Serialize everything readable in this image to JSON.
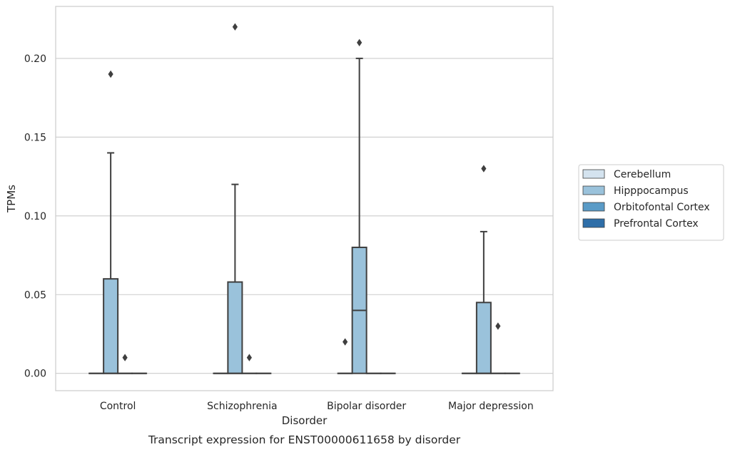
{
  "chart_data": {
    "type": "box",
    "caption": "Transcript expression for ENST00000611658 by disorder",
    "xlabel": "Disorder",
    "ylabel": "TPMs",
    "ylim": [
      -0.011,
      0.233
    ],
    "yticks": [
      0.0,
      0.05,
      0.1,
      0.15,
      0.2
    ],
    "ytick_labels": [
      "0.00",
      "0.05",
      "0.10",
      "0.15",
      "0.20"
    ],
    "grid": "horizontal",
    "legend_position": "right",
    "categories": [
      "Control",
      "Schizophrenia",
      "Bipolar disorder",
      "Major depression"
    ],
    "series": [
      {
        "name": "Cerebellum",
        "color": "#d4e3ef",
        "boxes": [
          {
            "q1": 0,
            "median": 0,
            "q3": 0,
            "whisker_low": 0,
            "whisker_high": 0,
            "outliers": []
          },
          {
            "q1": 0,
            "median": 0,
            "q3": 0,
            "whisker_low": 0,
            "whisker_high": 0,
            "outliers": []
          },
          {
            "q1": 0,
            "median": 0,
            "q3": 0,
            "whisker_low": 0,
            "whisker_high": 0,
            "outliers": []
          },
          {
            "q1": 0,
            "median": 0,
            "q3": 0,
            "whisker_low": 0,
            "whisker_high": 0,
            "outliers": []
          }
        ]
      },
      {
        "name": "Hipppocampus",
        "color": "#9ac2db",
        "boxes": [
          {
            "q1": 0,
            "median": 0,
            "q3": 0.06,
            "whisker_low": 0,
            "whisker_high": 0.14,
            "outliers": [
              0.19
            ]
          },
          {
            "q1": 0,
            "median": 0,
            "q3": 0.058,
            "whisker_low": 0,
            "whisker_high": 0.12,
            "outliers": [
              0.22
            ]
          },
          {
            "q1": 0,
            "median": 0.04,
            "q3": 0.08,
            "whisker_low": 0,
            "whisker_high": 0.2,
            "outliers": [
              0.21
            ]
          },
          {
            "q1": 0,
            "median": 0,
            "q3": 0.045,
            "whisker_low": 0,
            "whisker_high": 0.09,
            "outliers": [
              0.13
            ]
          }
        ]
      },
      {
        "name": "Orbitofontal Cortex",
        "color": "#5a9bc7",
        "boxes": [
          {
            "q1": 0,
            "median": 0,
            "q3": 0,
            "whisker_low": 0,
            "whisker_high": 0,
            "outliers": [
              0.01
            ]
          },
          {
            "q1": 0,
            "median": 0,
            "q3": 0,
            "whisker_low": 0,
            "whisker_high": 0,
            "outliers": [
              0.01
            ]
          },
          {
            "q1": 0,
            "median": 0,
            "q3": 0,
            "whisker_low": 0,
            "whisker_high": 0,
            "outliers": []
          },
          {
            "q1": 0,
            "median": 0,
            "q3": 0,
            "whisker_low": 0,
            "whisker_high": 0,
            "outliers": [
              0.03
            ]
          }
        ]
      },
      {
        "name": "Prefrontal Cortex",
        "color": "#2e6ea8",
        "boxes": [
          {
            "q1": 0,
            "median": 0,
            "q3": 0,
            "whisker_low": 0,
            "whisker_high": 0,
            "outliers": []
          },
          {
            "q1": 0,
            "median": 0,
            "q3": 0,
            "whisker_low": 0,
            "whisker_high": 0,
            "outliers": []
          },
          {
            "q1": 0,
            "median": 0,
            "q3": 0,
            "whisker_low": 0,
            "whisker_high": 0,
            "outliers": []
          },
          {
            "q1": 0,
            "median": 0,
            "q3": 0,
            "whisker_low": 0,
            "whisker_high": 0,
            "outliers": []
          }
        ]
      }
    ],
    "extra_outliers": [
      {
        "category": "Bipolar disorder",
        "value": 0.02,
        "side": "left"
      }
    ]
  }
}
